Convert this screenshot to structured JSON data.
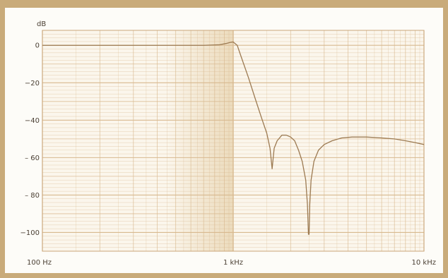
{
  "chart_data": {
    "type": "line",
    "title": "",
    "xlabel": "",
    "ylabel": "dB",
    "x_scale": "log",
    "xlim": [
      100,
      10000
    ],
    "ylim": [
      -110,
      8
    ],
    "x_ticks": [
      {
        "value": 100,
        "label": "100 Hz"
      },
      {
        "value": 1000,
        "label": "1 kHz"
      },
      {
        "value": 10000,
        "label": "10 kHz"
      }
    ],
    "y_ticks": [
      {
        "value": 0,
        "label": "0"
      },
      {
        "value": -20,
        "label": "−20"
      },
      {
        "value": -40,
        "label": "−40"
      },
      {
        "value": -60,
        "label": "– 60"
      },
      {
        "value": -80,
        "label": "– 80"
      },
      {
        "value": -100,
        "label": "−100"
      }
    ],
    "grid": true,
    "series": [
      {
        "color": "#9c7a52",
        "x": [
          100,
          200,
          400,
          700,
          850,
          920,
          960,
          1000,
          1050,
          1100,
          1200,
          1300,
          1400,
          1500,
          1560,
          1600,
          1640,
          1700,
          1800,
          1900,
          2000,
          2100,
          2200,
          2300,
          2400,
          2450,
          2480,
          2500,
          2520,
          2560,
          2650,
          2800,
          3000,
          3300,
          3700,
          4200,
          5000,
          6000,
          7000,
          8000,
          9000,
          10000
        ],
        "y": [
          0,
          0,
          0,
          0,
          0.3,
          1,
          1.5,
          1.8,
          0,
          -6,
          -17,
          -28,
          -38,
          -47,
          -55,
          -66,
          -55,
          -51,
          -48,
          -48,
          -49,
          -51,
          -56,
          -62,
          -72,
          -85,
          -101,
          -101,
          -85,
          -72,
          -62,
          -56,
          -53,
          -51,
          -49.5,
          -49,
          -49,
          -49.5,
          -50,
          -51,
          -52,
          -53
        ]
      }
    ]
  }
}
